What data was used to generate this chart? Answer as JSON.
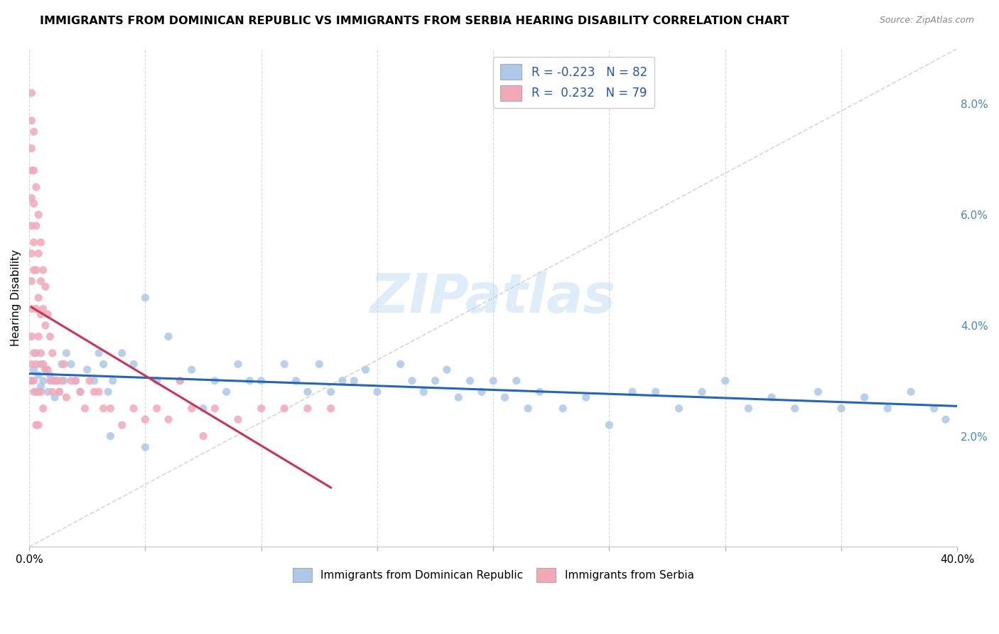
{
  "title": "IMMIGRANTS FROM DOMINICAN REPUBLIC VS IMMIGRANTS FROM SERBIA HEARING DISABILITY CORRELATION CHART",
  "source": "Source: ZipAtlas.com",
  "ylabel": "Hearing Disability",
  "ylabel_right_ticks": [
    "2.0%",
    "4.0%",
    "6.0%",
    "8.0%"
  ],
  "ylabel_right_vals": [
    0.02,
    0.04,
    0.06,
    0.08
  ],
  "xmin": 0.0,
  "xmax": 0.4,
  "ymin": 0.0,
  "ymax": 0.09,
  "legend_blue_r": "R = -0.223",
  "legend_blue_n": "N = 82",
  "legend_pink_r": "R =  0.232",
  "legend_pink_n": "N = 79",
  "blue_color": "#adc8e8",
  "pink_color": "#f2a8b8",
  "blue_line_color": "#2266bb",
  "pink_line_color": "#cc3355",
  "diag_line_color": "#cccccc",
  "watermark": "ZIPatlas",
  "blue_scatter_x": [
    0.001,
    0.002,
    0.003,
    0.003,
    0.004,
    0.005,
    0.005,
    0.006,
    0.007,
    0.008,
    0.009,
    0.01,
    0.011,
    0.012,
    0.013,
    0.014,
    0.015,
    0.016,
    0.018,
    0.02,
    0.022,
    0.025,
    0.028,
    0.03,
    0.032,
    0.034,
    0.036,
    0.04,
    0.045,
    0.05,
    0.055,
    0.06,
    0.065,
    0.07,
    0.075,
    0.08,
    0.085,
    0.09,
    0.095,
    0.1,
    0.11,
    0.115,
    0.12,
    0.125,
    0.13,
    0.135,
    0.14,
    0.145,
    0.15,
    0.16,
    0.165,
    0.17,
    0.175,
    0.18,
    0.185,
    0.19,
    0.195,
    0.2,
    0.205,
    0.21,
    0.215,
    0.22,
    0.23,
    0.24,
    0.25,
    0.26,
    0.27,
    0.28,
    0.29,
    0.3,
    0.31,
    0.32,
    0.33,
    0.34,
    0.35,
    0.36,
    0.37,
    0.38,
    0.39,
    0.395,
    0.05,
    0.035
  ],
  "blue_scatter_y": [
    0.03,
    0.032,
    0.028,
    0.035,
    0.031,
    0.033,
    0.029,
    0.03,
    0.032,
    0.028,
    0.031,
    0.03,
    0.027,
    0.03,
    0.028,
    0.033,
    0.03,
    0.035,
    0.033,
    0.03,
    0.028,
    0.032,
    0.03,
    0.035,
    0.033,
    0.028,
    0.03,
    0.035,
    0.033,
    0.045,
    0.03,
    0.038,
    0.03,
    0.032,
    0.025,
    0.03,
    0.028,
    0.033,
    0.03,
    0.03,
    0.033,
    0.03,
    0.028,
    0.033,
    0.028,
    0.03,
    0.03,
    0.032,
    0.028,
    0.033,
    0.03,
    0.028,
    0.03,
    0.032,
    0.027,
    0.03,
    0.028,
    0.03,
    0.027,
    0.03,
    0.025,
    0.028,
    0.025,
    0.027,
    0.022,
    0.028,
    0.028,
    0.025,
    0.028,
    0.03,
    0.025,
    0.027,
    0.025,
    0.028,
    0.025,
    0.027,
    0.025,
    0.028,
    0.025,
    0.023,
    0.018,
    0.02
  ],
  "pink_scatter_x": [
    0.001,
    0.001,
    0.001,
    0.001,
    0.001,
    0.001,
    0.001,
    0.001,
    0.001,
    0.001,
    0.001,
    0.001,
    0.002,
    0.002,
    0.002,
    0.002,
    0.002,
    0.002,
    0.003,
    0.003,
    0.003,
    0.003,
    0.004,
    0.004,
    0.004,
    0.004,
    0.005,
    0.005,
    0.005,
    0.005,
    0.006,
    0.006,
    0.006,
    0.007,
    0.007,
    0.007,
    0.008,
    0.008,
    0.009,
    0.009,
    0.01,
    0.01,
    0.011,
    0.012,
    0.013,
    0.014,
    0.015,
    0.016,
    0.018,
    0.02,
    0.022,
    0.024,
    0.026,
    0.028,
    0.03,
    0.032,
    0.035,
    0.04,
    0.045,
    0.05,
    0.055,
    0.06,
    0.065,
    0.07,
    0.075,
    0.08,
    0.09,
    0.1,
    0.11,
    0.12,
    0.13,
    0.002,
    0.003,
    0.004,
    0.005,
    0.006,
    0.003,
    0.004,
    0.002
  ],
  "pink_scatter_y": [
    0.082,
    0.077,
    0.072,
    0.068,
    0.063,
    0.058,
    0.053,
    0.048,
    0.043,
    0.038,
    0.033,
    0.03,
    0.075,
    0.068,
    0.062,
    0.055,
    0.05,
    0.035,
    0.065,
    0.058,
    0.05,
    0.043,
    0.06,
    0.053,
    0.045,
    0.038,
    0.055,
    0.048,
    0.042,
    0.035,
    0.05,
    0.043,
    0.033,
    0.047,
    0.04,
    0.032,
    0.042,
    0.032,
    0.038,
    0.03,
    0.035,
    0.028,
    0.03,
    0.03,
    0.028,
    0.03,
    0.033,
    0.027,
    0.03,
    0.03,
    0.028,
    0.025,
    0.03,
    0.028,
    0.028,
    0.025,
    0.025,
    0.022,
    0.025,
    0.023,
    0.025,
    0.023,
    0.03,
    0.025,
    0.02,
    0.025,
    0.023,
    0.025,
    0.025,
    0.025,
    0.025,
    0.028,
    0.033,
    0.028,
    0.028,
    0.025,
    0.022,
    0.022,
    0.03
  ]
}
